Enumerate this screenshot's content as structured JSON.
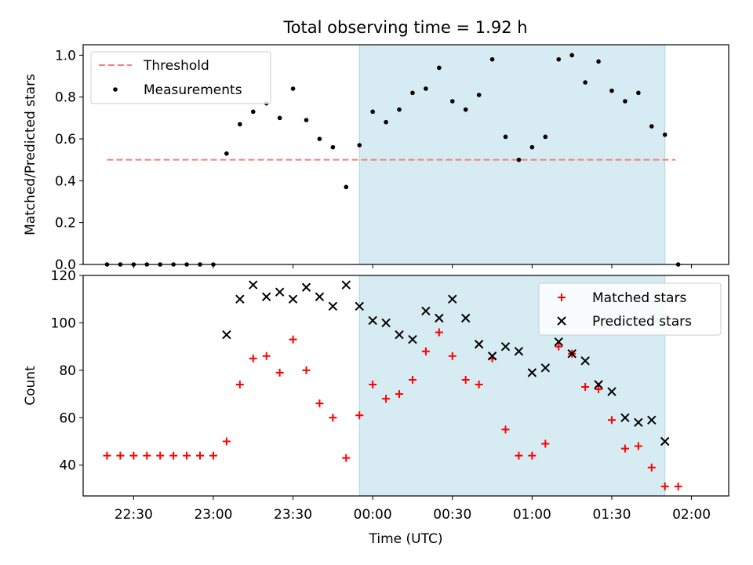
{
  "figure": {
    "title": "Total observing time = 1.92 h"
  },
  "colors": {
    "threshold": "#f08080",
    "measurement": "#000000",
    "matched": "#ff0000",
    "predicted": "#000000",
    "shade": "#add8e6"
  },
  "chart_data": [
    {
      "type": "scatter",
      "ylabel": "Matched/Predicted stars",
      "ylim": [
        0,
        1.05
      ],
      "yticks": [
        0.0,
        0.2,
        0.4,
        0.6,
        0.8,
        1.0
      ],
      "yticklabels": [
        "0.0",
        "0.2",
        "0.4",
        "0.6",
        "0.8",
        "1.0"
      ],
      "xlim": [
        "22:11",
        "02:14"
      ],
      "xticks": [
        "22:30",
        "23:00",
        "23:30",
        "00:00",
        "00:30",
        "01:00",
        "01:30",
        "02:00"
      ],
      "shaded_span": [
        "23:55",
        "01:50"
      ],
      "legend": {
        "placement": "upper left",
        "entries": [
          "Threshold",
          "Measurements"
        ]
      },
      "threshold": {
        "name": "Threshold",
        "value": 0.5,
        "x_range": [
          "22:20",
          "01:54"
        ]
      },
      "series": [
        {
          "name": "Measurements",
          "marker": "dot",
          "x": [
            "22:20",
            "22:25",
            "22:30",
            "22:35",
            "22:40",
            "22:45",
            "22:50",
            "22:55",
            "23:00",
            "23:05",
            "23:10",
            "23:15",
            "23:20",
            "23:25",
            "23:30",
            "23:35",
            "23:40",
            "23:45",
            "23:50",
            "23:55",
            "00:00",
            "00:05",
            "00:10",
            "00:15",
            "00:20",
            "00:25",
            "00:30",
            "00:35",
            "00:40",
            "00:45",
            "00:50",
            "00:55",
            "01:00",
            "01:05",
            "01:10",
            "01:15",
            "01:20",
            "01:25",
            "01:30",
            "01:35",
            "01:40",
            "01:45",
            "01:50",
            "01:55"
          ],
          "values": [
            0,
            0,
            0,
            0,
            0,
            0,
            0,
            0,
            0,
            0.53,
            0.67,
            0.73,
            0.77,
            0.7,
            0.84,
            0.69,
            0.6,
            0.56,
            0.37,
            0.57,
            0.73,
            0.68,
            0.74,
            0.82,
            0.84,
            0.94,
            0.78,
            0.74,
            0.81,
            0.98,
            0.61,
            0.5,
            0.56,
            0.61,
            0.98,
            1.0,
            0.87,
            0.97,
            0.83,
            0.78,
            0.82,
            0.66,
            0.62,
            0
          ]
        }
      ]
    },
    {
      "type": "scatter",
      "ylabel": "Count",
      "xlabel": "Time (UTC)",
      "ylim": [
        27,
        120
      ],
      "yticks": [
        40,
        60,
        80,
        100,
        120
      ],
      "yticklabels": [
        "40",
        "60",
        "80",
        "100",
        "120"
      ],
      "xlim": [
        "22:11",
        "02:14"
      ],
      "xticks": [
        "22:30",
        "23:00",
        "23:30",
        "00:00",
        "00:30",
        "01:00",
        "01:30",
        "02:00"
      ],
      "xticklabels": [
        "22:30",
        "23:00",
        "23:30",
        "00:00",
        "00:30",
        "01:00",
        "01:30",
        "02:00"
      ],
      "shaded_span": [
        "23:55",
        "01:50"
      ],
      "legend": {
        "placement": "upper right",
        "entries": [
          "Matched stars",
          "Predicted stars"
        ]
      },
      "series": [
        {
          "name": "Matched stars",
          "marker": "plus",
          "x": [
            "22:20",
            "22:25",
            "22:30",
            "22:35",
            "22:40",
            "22:45",
            "22:50",
            "22:55",
            "23:00",
            "23:05",
            "23:10",
            "23:15",
            "23:20",
            "23:25",
            "23:30",
            "23:35",
            "23:40",
            "23:45",
            "23:50",
            "23:55",
            "00:00",
            "00:05",
            "00:10",
            "00:15",
            "00:20",
            "00:25",
            "00:30",
            "00:35",
            "00:40",
            "00:45",
            "00:50",
            "00:55",
            "01:00",
            "01:05",
            "01:10",
            "01:15",
            "01:20",
            "01:25",
            "01:30",
            "01:35",
            "01:40",
            "01:45",
            "01:50",
            "01:55"
          ],
          "values": [
            44,
            44,
            44,
            44,
            44,
            44,
            44,
            44,
            44,
            50,
            74,
            85,
            86,
            79,
            93,
            80,
            66,
            60,
            43,
            61,
            74,
            68,
            70,
            76,
            88,
            96,
            86,
            76,
            74,
            85,
            55,
            44,
            44,
            49,
            90,
            87,
            73,
            72,
            59,
            47,
            48,
            39,
            31,
            31
          ]
        },
        {
          "name": "Predicted stars",
          "marker": "x",
          "x": [
            "23:05",
            "23:10",
            "23:15",
            "23:20",
            "23:25",
            "23:30",
            "23:35",
            "23:40",
            "23:45",
            "23:50",
            "23:55",
            "00:00",
            "00:05",
            "00:10",
            "00:15",
            "00:20",
            "00:25",
            "00:30",
            "00:35",
            "00:40",
            "00:45",
            "00:50",
            "00:55",
            "01:00",
            "01:05",
            "01:10",
            "01:15",
            "01:20",
            "01:25",
            "01:30",
            "01:35",
            "01:40",
            "01:45",
            "01:50"
          ],
          "values": [
            95,
            110,
            116,
            111,
            113,
            110,
            115,
            111,
            107,
            116,
            107,
            101,
            100,
            95,
            93,
            105,
            102,
            110,
            102,
            91,
            86,
            90,
            88,
            79,
            81,
            92,
            87,
            84,
            74,
            71,
            60,
            58,
            59,
            50
          ]
        }
      ]
    }
  ]
}
